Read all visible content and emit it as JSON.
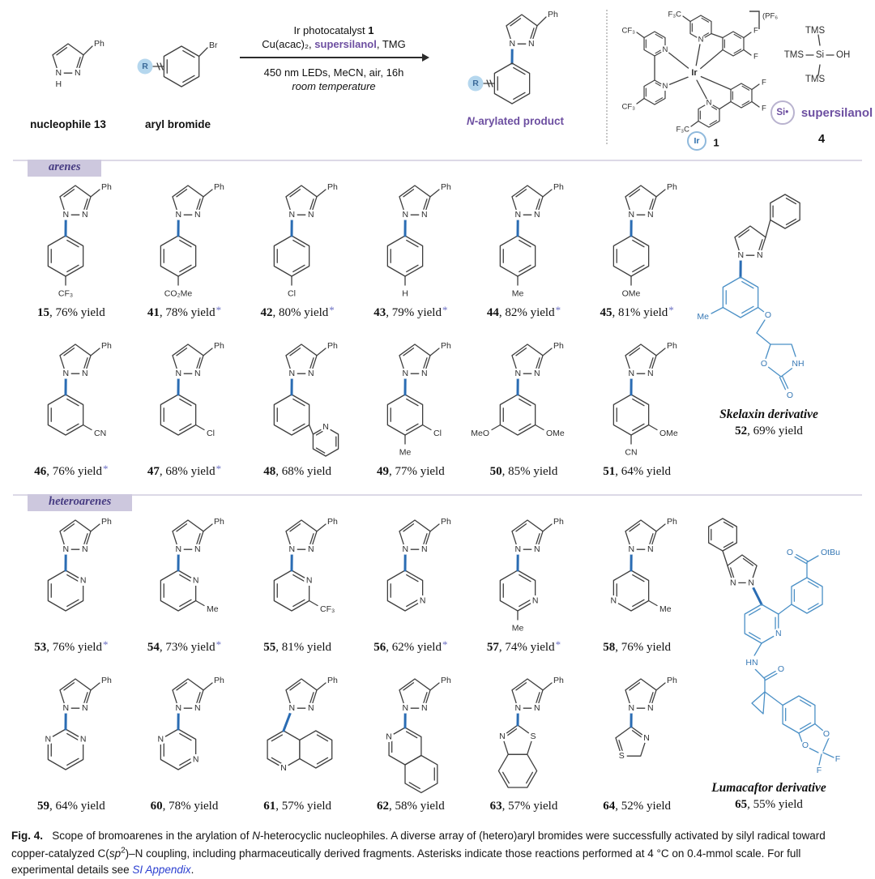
{
  "colors": {
    "blue_bond": "#2a6cb3",
    "blue_struct": "#4b90c6",
    "blue_text": "#3879b5",
    "purple": "#6d4fa1",
    "section_bg": "#cdc8de",
    "section_text": "#473c82",
    "asterisk": "#6b6fc3",
    "link_blue": "#2b3fd0",
    "r_fill": "#b5d7ee",
    "ir_icon": "#2d6fae"
  },
  "atoms": {
    "n": "N",
    "s": "S",
    "ph": "Ph",
    "h": "H",
    "br": "Br",
    "r": "R"
  },
  "scheme": {
    "nucleophile": {
      "label": "nucleophile 13"
    },
    "aryl_bromide": {
      "label": "aryl bromide"
    },
    "conditions": {
      "line1_pre": "Ir photocatalyst ",
      "line1_bold": "1",
      "line2_pre": "Cu(acac)₂, ",
      "line2_hl": "supersilanol",
      "line2_post": ", TMG",
      "line3": "450 nm LEDs, MeCN, air, 16h",
      "line4": "room temperature"
    },
    "product": {
      "label_i": "N",
      "label_rest": "-arylated product"
    },
    "catalyst": {
      "pf6": "(PF₆)",
      "f3c": "F₃C",
      "cf3": "CF₃",
      "f": "F",
      "ir": "Ir",
      "num": "1"
    },
    "silanol": {
      "tms": "TMS",
      "si": "Si",
      "oh": "OH",
      "icon": "Si•",
      "name": "supersilanol",
      "num": "4"
    }
  },
  "sections": [
    {
      "title": "arenes",
      "compounds": [
        {
          "num": "15",
          "yield": "76% yield",
          "ast": false,
          "hexN": [],
          "subs": [
            [
              "CF₃",
              "para"
            ]
          ]
        },
        {
          "num": "41",
          "yield": "78% yield",
          "ast": true,
          "hexN": [],
          "subs": [
            [
              "CO₂Me",
              "para"
            ]
          ]
        },
        {
          "num": "42",
          "yield": "80% yield",
          "ast": true,
          "hexN": [],
          "subs": [
            [
              "Cl",
              "para"
            ]
          ]
        },
        {
          "num": "43",
          "yield": "79% yield",
          "ast": true,
          "hexN": [],
          "subs": [
            [
              "H",
              "para"
            ]
          ]
        },
        {
          "num": "44",
          "yield": "82% yield",
          "ast": true,
          "hexN": [],
          "subs": [
            [
              "Me",
              "para"
            ]
          ]
        },
        {
          "num": "45",
          "yield": "81% yield",
          "ast": true,
          "hexN": [],
          "subs": [
            [
              "OMe",
              "para"
            ]
          ]
        },
        {
          "num": "46",
          "yield": "76% yield",
          "ast": true,
          "hexN": [],
          "subs": [
            [
              "CN",
              "meta-r"
            ]
          ]
        },
        {
          "num": "47",
          "yield": "68% yield",
          "ast": true,
          "hexN": [],
          "subs": [
            [
              "Cl",
              "meta-r"
            ]
          ]
        },
        {
          "num": "48",
          "yield": "68% yield",
          "ast": false,
          "special": "pyridylring",
          "subs": []
        },
        {
          "num": "49",
          "yield": "77% yield",
          "ast": false,
          "hexN": [],
          "subs": [
            [
              "Cl",
              "meta-r"
            ],
            [
              "Me",
              "para"
            ]
          ]
        },
        {
          "num": "50",
          "yield": "85% yield",
          "ast": false,
          "hexN": [],
          "subs": [
            [
              "MeO",
              "meta-l"
            ],
            [
              "OMe",
              "meta-r"
            ]
          ]
        },
        {
          "num": "51",
          "yield": "64% yield",
          "ast": false,
          "hexN": [],
          "subs": [
            [
              "OMe",
              "meta-r"
            ],
            [
              "CN",
              "para"
            ]
          ]
        }
      ],
      "derivative": {
        "name": "Skelaxin derivative",
        "num": "52",
        "yield": "69% yield",
        "atoms": {
          "me": "Me",
          "o_ether": "O",
          "nh": "NH",
          "o_ring": "O",
          "o_carbonyl": "O"
        }
      }
    },
    {
      "title": "heteroarenes",
      "compounds": [
        {
          "num": "53",
          "yield": "76% yield",
          "ast": true,
          "hexN": [
            1
          ],
          "subs": []
        },
        {
          "num": "54",
          "yield": "73% yield",
          "ast": true,
          "hexN": [
            1
          ],
          "subs": [
            [
              "Me",
              "meta-r"
            ]
          ]
        },
        {
          "num": "55",
          "yield": "81% yield",
          "ast": false,
          "hexN": [
            1
          ],
          "subs": [
            [
              "CF₃",
              "meta-r"
            ]
          ]
        },
        {
          "num": "56",
          "yield": "62% yield",
          "ast": true,
          "hexN": [
            2
          ],
          "subs": []
        },
        {
          "num": "57",
          "yield": "74% yield",
          "ast": true,
          "hexN": [
            2
          ],
          "subs": [
            [
              "Me",
              "para"
            ]
          ]
        },
        {
          "num": "58",
          "yield": "76% yield",
          "ast": false,
          "hexN": [
            4
          ],
          "subs": [
            [
              "Me",
              "meta-r"
            ]
          ]
        },
        {
          "num": "59",
          "yield": "64% yield",
          "ast": false,
          "hexN": [
            1,
            5
          ],
          "subs": []
        },
        {
          "num": "60",
          "yield": "78% yield",
          "ast": false,
          "hexN": [
            2,
            5
          ],
          "subs": []
        },
        {
          "num": "61",
          "yield": "57% yield",
          "ast": false,
          "special": "quinoline",
          "subs": []
        },
        {
          "num": "62",
          "yield": "58% yield",
          "ast": false,
          "special": "isoquinoline",
          "subs": []
        },
        {
          "num": "63",
          "yield": "57% yield",
          "ast": false,
          "special": "benzothiazole",
          "subs": []
        },
        {
          "num": "64",
          "yield": "52% yield",
          "ast": false,
          "special": "thiazole",
          "subs": []
        }
      ],
      "derivative": {
        "name": "Lumacaftor derivative",
        "num": "65",
        "yield": "55% yield",
        "atoms": {
          "o_ester": "O",
          "otbu": "OtBu",
          "hn": "HN",
          "o_amide": "O",
          "o_d1": "O",
          "o_d2": "O",
          "f1": "F",
          "f2": "F"
        }
      }
    }
  ],
  "caption": {
    "fig": "Fig. 4.",
    "parts": [
      {
        "t": "Scope of bromoarenes in the arylation of "
      },
      {
        "t": "N",
        "i": true
      },
      {
        "t": "-heterocyclic nucleophiles. A diverse array of (hetero)aryl bromides were successfully activated by silyl radical toward copper-catalyzed C("
      },
      {
        "t": "sp",
        "i": true
      },
      {
        "t": "2",
        "sup": true
      },
      {
        "t": ")–N coupling, including pharmaceutically derived fragments. Asterisks indicate those reactions performed at 4 °C on 0.4-mmol scale. For full experimental details see "
      },
      {
        "t": "SI Appendix",
        "i": true,
        "link": true
      },
      {
        "t": "."
      }
    ]
  }
}
